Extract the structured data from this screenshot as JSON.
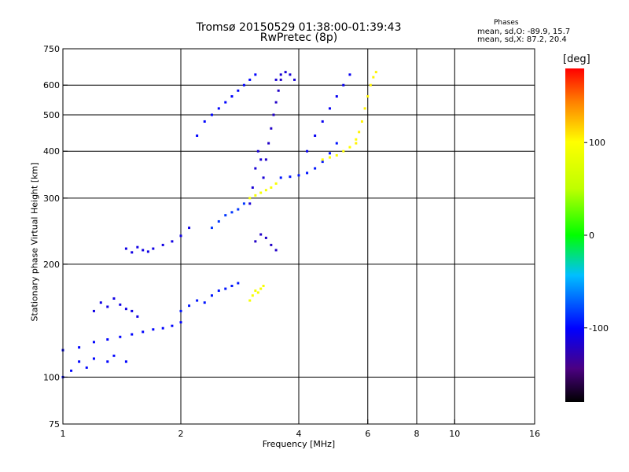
{
  "chart_data": {
    "type": "scatter",
    "title": "Tromsø 20150529 01:38:00-01:39:43",
    "subtitle": "RwPretec (8p)",
    "annotation": {
      "title": "Phases",
      "line_o": "mean, sd,O: -89.9, 15.7",
      "line_x": "mean, sd,X: 87.2, 20.4"
    },
    "xlabel": "Frequency [MHz]",
    "ylabel": "Stationary phase Virtual Height [km]",
    "x_scale": "log",
    "y_scale": "log",
    "xlim": [
      1,
      16
    ],
    "ylim": [
      75,
      750
    ],
    "grid": true,
    "x_ticks": [
      1,
      2,
      4,
      6,
      8,
      10,
      16
    ],
    "x_tick_labels": [
      "1",
      "2",
      "4",
      "6",
      "8",
      "10",
      "16"
    ],
    "x_gridlines": [
      2,
      4,
      6,
      8,
      10
    ],
    "y_ticks": [
      75,
      100,
      200,
      300,
      400,
      500,
      600,
      750
    ],
    "y_tick_labels": [
      "75",
      "100",
      "200",
      "300",
      "400",
      "500",
      "600",
      "750"
    ],
    "y_gridlines": [
      100,
      200,
      300,
      400,
      500,
      600
    ],
    "colorbar": {
      "label": "[deg]",
      "range": [
        -180,
        180
      ],
      "ticks": [
        -100,
        0,
        100
      ],
      "tick_labels": [
        "-100",
        "0",
        "100"
      ]
    },
    "traces": [
      {
        "x": [
          1.0,
          1.1,
          1.2,
          1.3,
          1.4,
          1.5,
          1.6,
          1.7,
          1.8,
          1.9,
          2.0
        ],
        "y": [
          118,
          120,
          124,
          126,
          128,
          130,
          132,
          134,
          135,
          137,
          140
        ],
        "phase": -100
      },
      {
        "x": [
          1.0,
          1.05,
          1.1,
          1.15,
          1.2,
          1.3,
          1.35,
          1.45
        ],
        "y": [
          100,
          104,
          110,
          106,
          112,
          110,
          114,
          110
        ],
        "phase": -100
      },
      {
        "x": [
          1.2,
          1.25,
          1.3,
          1.35,
          1.4,
          1.45,
          1.5,
          1.55
        ],
        "y": [
          150,
          158,
          154,
          162,
          156,
          152,
          150,
          145
        ],
        "phase": -110
      },
      {
        "x": [
          1.45,
          1.5,
          1.55,
          1.6,
          1.65,
          1.7,
          1.8,
          1.9,
          2.0,
          2.1
        ],
        "y": [
          220,
          215,
          222,
          218,
          216,
          220,
          225,
          230,
          238,
          250
        ],
        "phase": -110
      },
      {
        "x": [
          2.0,
          2.1,
          2.2,
          2.3,
          2.4,
          2.5,
          2.6,
          2.7,
          2.8
        ],
        "y": [
          150,
          155,
          160,
          158,
          165,
          170,
          172,
          175,
          178
        ],
        "phase": -95
      },
      {
        "x": [
          2.4,
          2.5,
          2.6,
          2.7,
          2.8,
          2.9
        ],
        "y": [
          250,
          260,
          270,
          275,
          280,
          290
        ],
        "phase": -85
      },
      {
        "x": [
          2.2,
          2.3,
          2.4,
          2.5,
          2.6,
          2.7,
          2.8,
          2.9,
          3.0,
          3.1
        ],
        "y": [
          440,
          480,
          500,
          520,
          540,
          560,
          580,
          600,
          620,
          640
        ],
        "phase": -100
      },
      {
        "x": [
          3.0,
          3.05,
          3.1,
          3.15,
          3.2,
          3.25
        ],
        "y": [
          290,
          320,
          360,
          400,
          380,
          340
        ],
        "phase": -115
      },
      {
        "x": [
          3.3,
          3.35,
          3.4,
          3.45,
          3.5,
          3.55,
          3.6
        ],
        "y": [
          380,
          420,
          460,
          500,
          540,
          580,
          620
        ],
        "phase": -120
      },
      {
        "x": [
          3.5,
          3.6,
          3.7,
          3.8,
          3.9
        ],
        "y": [
          620,
          640,
          650,
          640,
          620
        ],
        "phase": -115
      },
      {
        "x": [
          3.1,
          3.2,
          3.3,
          3.4,
          3.5
        ],
        "y": [
          230,
          240,
          235,
          225,
          218
        ],
        "phase": -120
      },
      {
        "x": [
          3.0,
          3.1,
          3.2,
          3.3,
          3.4,
          3.5
        ],
        "y": [
          300,
          305,
          310,
          315,
          320,
          328
        ],
        "phase": 95
      },
      {
        "x": [
          3.0,
          3.05,
          3.1,
          3.15,
          3.2,
          3.25
        ],
        "y": [
          160,
          165,
          170,
          168,
          172,
          175
        ],
        "phase": 95
      },
      {
        "x": [
          3.6,
          3.8,
          4.0,
          4.2,
          4.4,
          4.6,
          4.8,
          5.0
        ],
        "y": [
          340,
          342,
          345,
          350,
          360,
          375,
          395,
          420
        ],
        "phase": -95
      },
      {
        "x": [
          4.2,
          4.4,
          4.6,
          4.8,
          5.0,
          5.2,
          5.4
        ],
        "y": [
          400,
          440,
          480,
          520,
          560,
          600,
          640
        ],
        "phase": -105
      },
      {
        "x": [
          4.6,
          4.8,
          5.0,
          5.2,
          5.4,
          5.6
        ],
        "y": [
          380,
          385,
          390,
          400,
          410,
          430
        ],
        "phase": 100
      },
      {
        "x": [
          5.6,
          5.7,
          5.8,
          5.9,
          6.0,
          6.1,
          6.2,
          6.3
        ],
        "y": [
          420,
          450,
          480,
          520,
          560,
          600,
          630,
          650
        ],
        "phase": 105
      }
    ]
  }
}
